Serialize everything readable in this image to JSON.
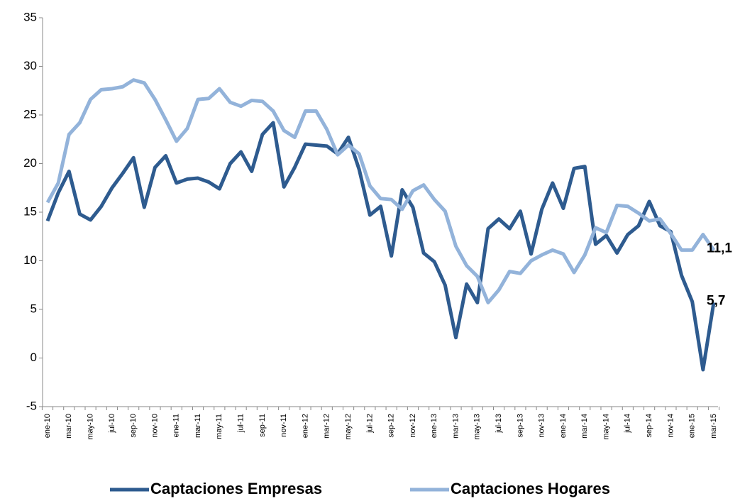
{
  "chart_data": {
    "type": "line",
    "categories": [
      "ene-10",
      null,
      "mar-10",
      null,
      "may-10",
      null,
      "jul-10",
      null,
      "sep-10",
      null,
      "nov-10",
      null,
      "ene-11",
      null,
      "mar-11",
      null,
      "may-11",
      null,
      "jul-11",
      null,
      "sep-11",
      null,
      "nov-11",
      null,
      "ene-12",
      null,
      "mar-12",
      null,
      "may-12",
      null,
      "jul-12",
      null,
      "sep-12",
      null,
      "nov-12",
      null,
      "ene-13",
      null,
      "mar-13",
      null,
      "may-13",
      null,
      "jul-13",
      null,
      "sep-13",
      null,
      "nov-13",
      null,
      "ene-14",
      null,
      "mar-14",
      null,
      "may-14",
      null,
      "jul-14",
      null,
      "sep-14",
      null,
      "nov-14",
      null,
      "ene-15",
      null,
      "mar-15"
    ],
    "series": [
      {
        "name": "Captaciones Empresas",
        "color": "#2e5b8f",
        "values": [
          14.1,
          17,
          19.2,
          14.8,
          14.2,
          15.6,
          17.5,
          19,
          20.6,
          15.5,
          19.6,
          20.8,
          18,
          18.4,
          18.5,
          18.1,
          17.4,
          20,
          21.2,
          19.2,
          23,
          24.2,
          17.6,
          19.6,
          22,
          21.9,
          21.8,
          21,
          22.7,
          19.4,
          14.7,
          15.6,
          10.5,
          17.3,
          15.5,
          10.8,
          9.9,
          7.5,
          2.1,
          7.6,
          5.7,
          13.3,
          14.3,
          13.3,
          15.1,
          10.7,
          15.3,
          18,
          15.4,
          19.5,
          19.7,
          11.7,
          12.6,
          10.8,
          12.7,
          13.6,
          16.1,
          13.6,
          13,
          8.5,
          5.8,
          -1.2,
          5.7
        ],
        "value_labels": [
          null,
          null,
          null,
          null,
          null,
          null,
          null,
          null,
          null,
          null,
          null,
          null,
          null,
          null,
          null,
          null,
          null,
          null,
          null,
          null,
          null,
          null,
          null,
          null,
          null,
          null,
          null,
          null,
          null,
          null,
          null,
          null,
          null,
          null,
          null,
          null,
          null,
          null,
          null,
          null,
          null,
          null,
          null,
          null,
          null,
          null,
          null,
          null,
          null,
          null,
          null,
          null,
          null,
          null,
          null,
          null,
          null,
          null,
          null,
          null,
          null,
          null,
          "5,7"
        ]
      },
      {
        "name": "Captaciones Hogares",
        "color": "#93b3da",
        "values": [
          16,
          18,
          23,
          24.2,
          26.6,
          27.6,
          27.7,
          27.9,
          28.6,
          28.3,
          26.6,
          24.5,
          22.3,
          23.6,
          26.6,
          26.7,
          27.7,
          26.3,
          25.9,
          26.5,
          26.4,
          25.4,
          23.4,
          22.7,
          25.4,
          25.4,
          23.5,
          20.9,
          21.9,
          21,
          17.7,
          16.4,
          16.3,
          15.3,
          17.2,
          17.8,
          16.3,
          15.1,
          11.5,
          9.5,
          8.4,
          5.7,
          7,
          8.9,
          8.7,
          10,
          10.6,
          11.1,
          10.7,
          8.8,
          10.6,
          13.4,
          12.9,
          15.7,
          15.6,
          14.9,
          14.1,
          14.3,
          12.8,
          11.1,
          11.1,
          12.7,
          11.1
        ],
        "value_labels": [
          null,
          null,
          null,
          null,
          null,
          null,
          null,
          null,
          null,
          null,
          null,
          null,
          null,
          null,
          null,
          null,
          null,
          null,
          null,
          null,
          null,
          null,
          null,
          null,
          null,
          null,
          null,
          null,
          null,
          null,
          null,
          null,
          null,
          null,
          null,
          null,
          null,
          null,
          null,
          null,
          null,
          null,
          null,
          null,
          null,
          null,
          null,
          null,
          null,
          null,
          null,
          null,
          null,
          null,
          null,
          null,
          null,
          null,
          null,
          null,
          null,
          null,
          "11,1"
        ]
      }
    ],
    "ylim": [
      -5,
      35
    ],
    "yticks": [
      -5,
      0,
      5,
      10,
      15,
      20,
      25,
      30,
      35
    ],
    "grid": false,
    "legend": "bottom"
  }
}
